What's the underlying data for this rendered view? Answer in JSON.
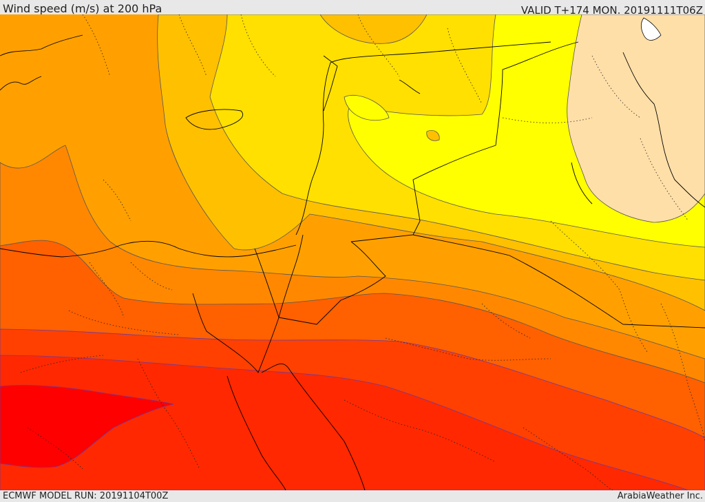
{
  "header": {
    "title": "Wind speed (m/s) at 200 hPa",
    "valid_time": "VALID T+174 MON. 20191111T06Z"
  },
  "footer": {
    "model_run": "ECMWF MODEL RUN: 20191104T00Z",
    "credit": "ArabiaWeather Inc."
  },
  "map": {
    "variable": "wind speed",
    "units": "m/s",
    "pressure_level_hPa": 200,
    "colors": {
      "calm_zone": "#ffdfa8",
      "bright_yellow": "#ffff00",
      "yellow": "#ffe000",
      "amber": "#ffc000",
      "orange_light": "#ffa000",
      "orange": "#ff8800",
      "orange_dark": "#ff6000",
      "red_orange": "#ff4000",
      "red_light": "#ff2800",
      "red": "#ff0000",
      "contour_line": "#555555",
      "contour_line_strong": "#6a3aa0",
      "border_line": "#000000"
    }
  }
}
